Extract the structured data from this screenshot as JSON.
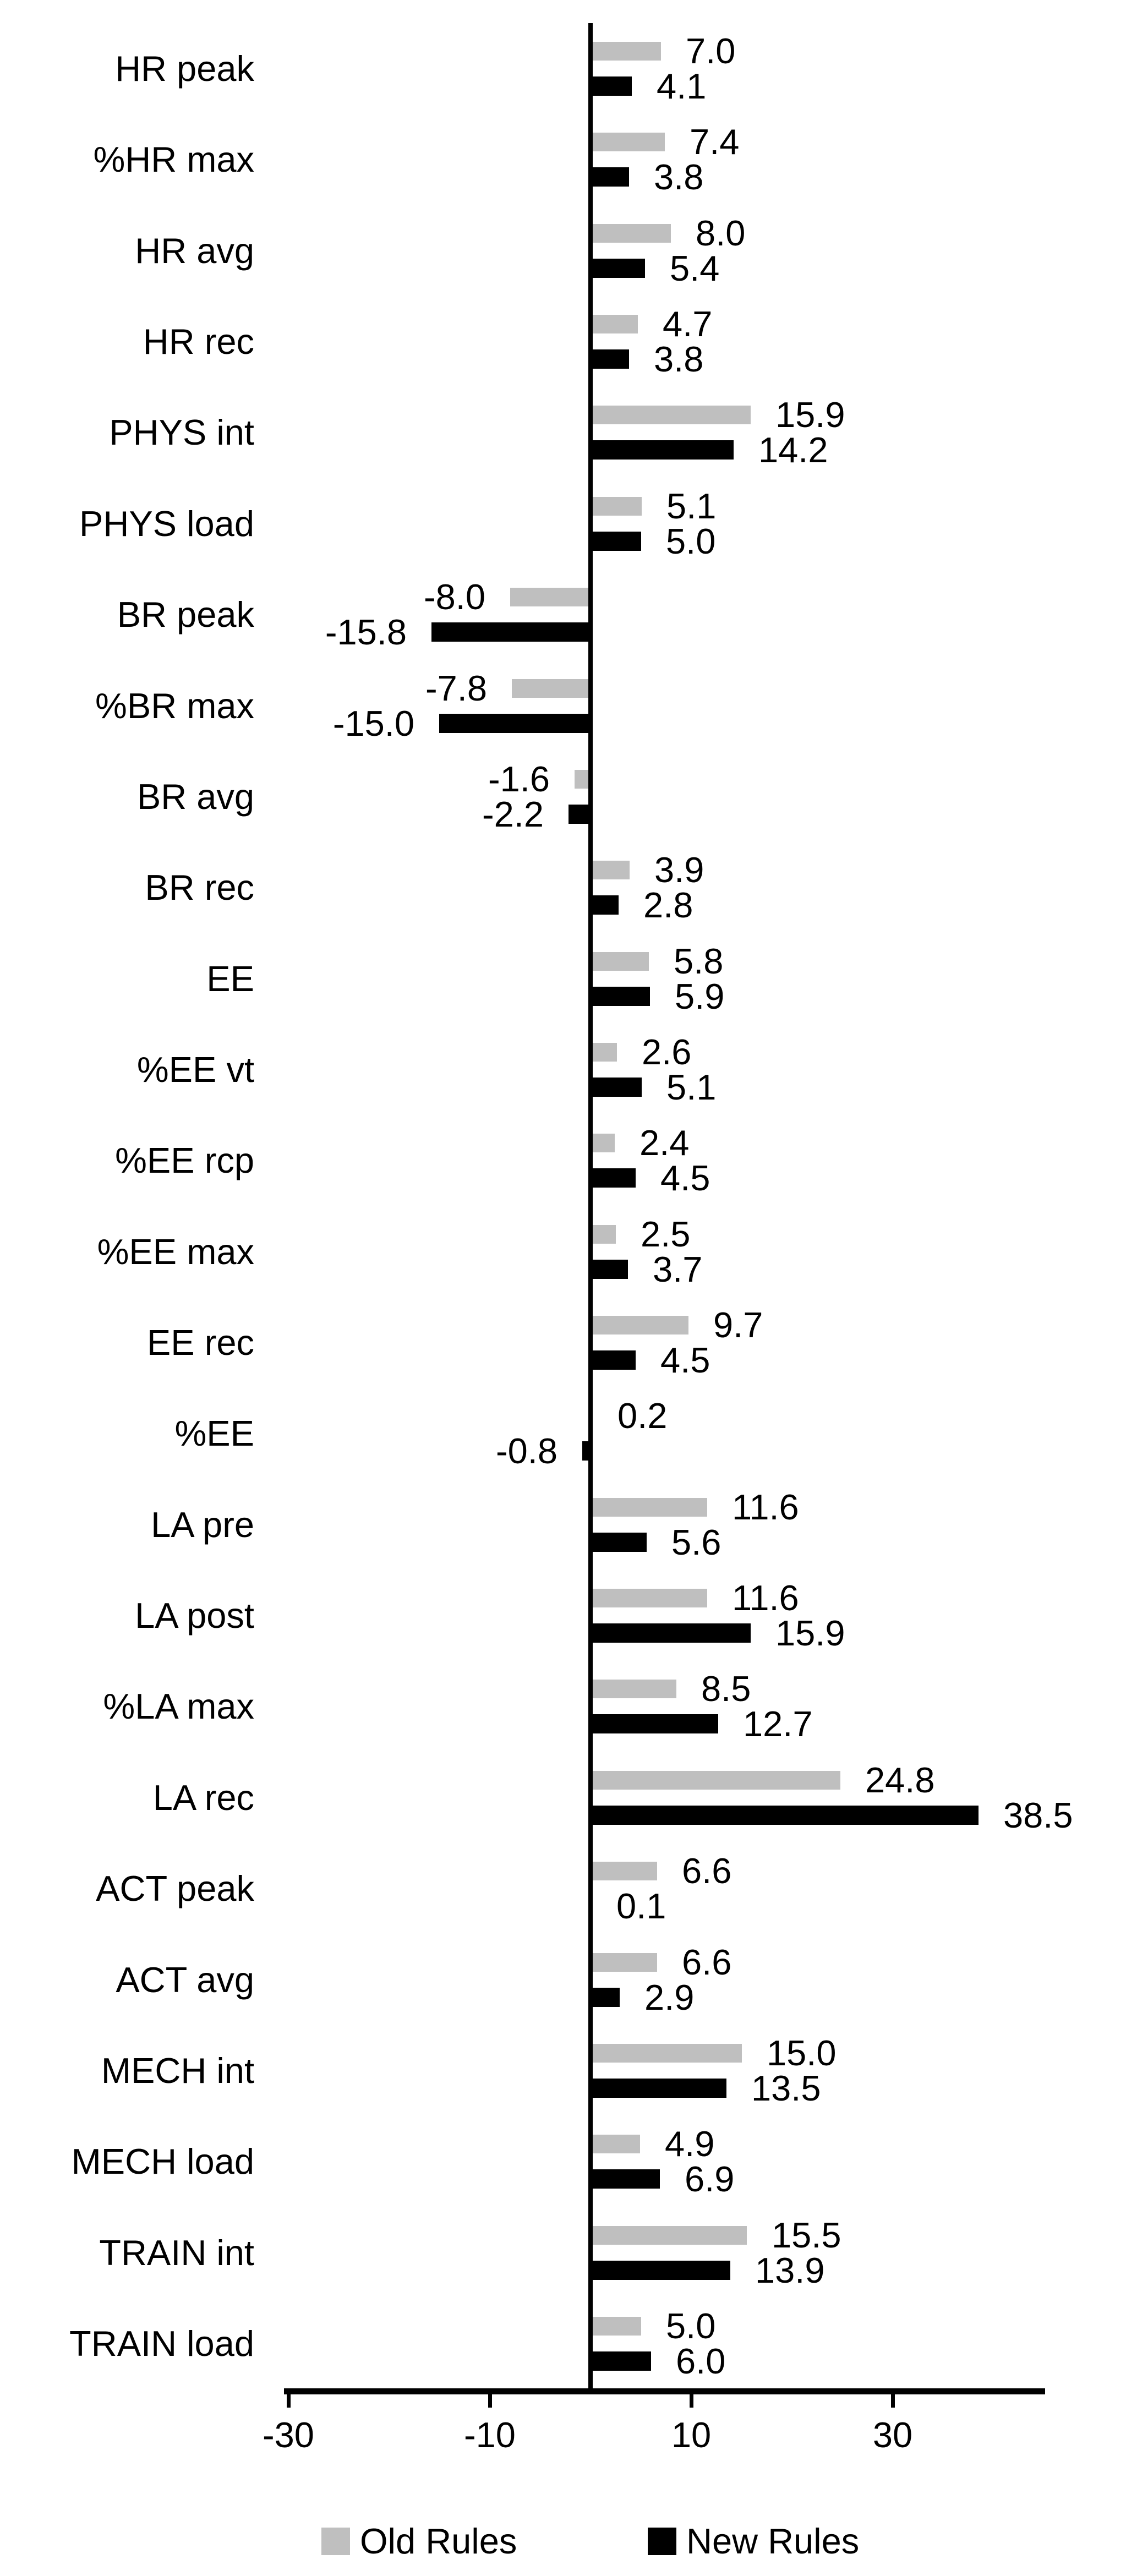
{
  "chart_data": {
    "type": "bar",
    "orientation": "horizontal",
    "categories": [
      "HR peak",
      "%HR max",
      "HR avg",
      "HR rec",
      "PHYS int",
      "PHYS load",
      "BR peak",
      "%BR max",
      "BR avg",
      "BR rec",
      "EE",
      "%EE vt",
      "%EE rcp",
      "%EE max",
      "EE rec",
      "%EE",
      "LA pre",
      "LA post",
      "%LA max",
      "LA rec",
      "ACT peak",
      "ACT avg",
      "MECH int",
      "MECH load",
      "TRAIN int",
      "TRAIN load"
    ],
    "series": [
      {
        "name": "Old Rules",
        "color": "#bfbfbf",
        "values": [
          7.0,
          7.4,
          8.0,
          4.7,
          15.9,
          5.1,
          -8.0,
          -7.8,
          -1.6,
          3.9,
          5.8,
          2.6,
          2.4,
          2.5,
          9.7,
          0.2,
          11.6,
          11.6,
          8.5,
          24.8,
          6.6,
          6.6,
          15.0,
          4.9,
          15.5,
          5.0
        ]
      },
      {
        "name": "New Rules",
        "color": "#000000",
        "values": [
          4.1,
          3.8,
          5.4,
          3.8,
          14.2,
          5.0,
          -15.8,
          -15.0,
          -2.2,
          2.8,
          5.9,
          5.1,
          4.5,
          3.7,
          4.5,
          -0.8,
          5.6,
          15.9,
          12.7,
          38.5,
          0.1,
          2.9,
          13.5,
          6.9,
          13.9,
          6.0
        ]
      }
    ],
    "x_ticks": [
      -30,
      -10,
      10,
      30
    ],
    "xlim": [
      -30.5,
      45
    ],
    "value_labels": "one_decimal",
    "grid": false,
    "legend_position": "bottom",
    "background": "#ffffff",
    "axis_color": "#000000"
  }
}
